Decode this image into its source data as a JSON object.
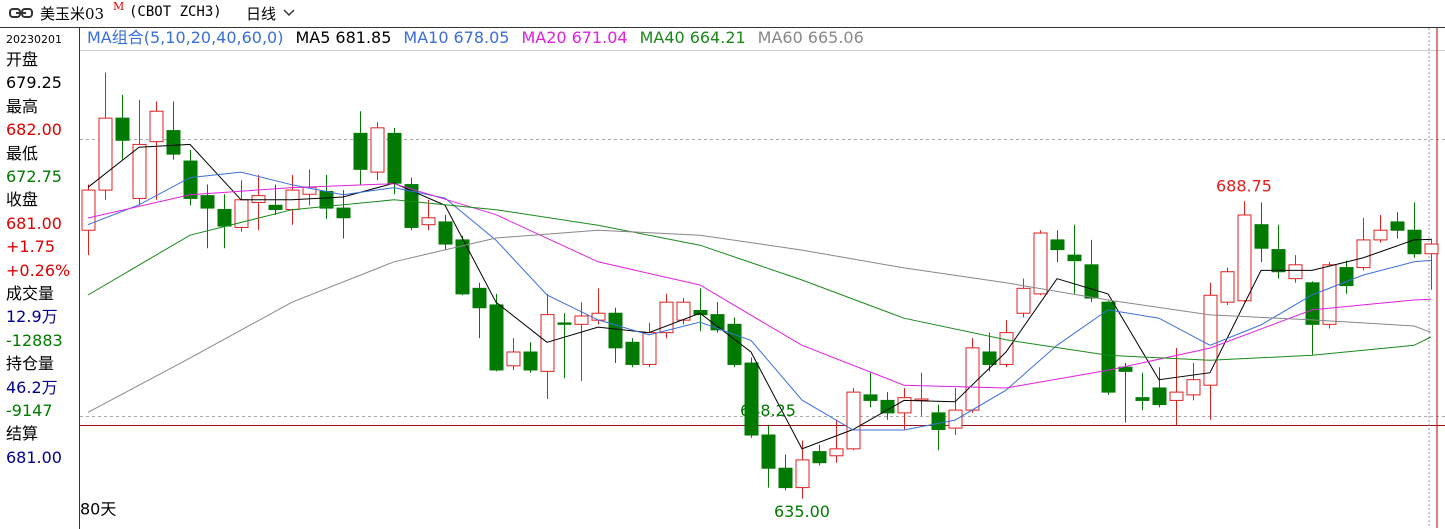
{
  "header": {
    "symbol": "美玉米03",
    "mark": "M",
    "code": "(CBOT ZCH3)",
    "period": "日线"
  },
  "info_panel": {
    "date": "20230201",
    "items": [
      {
        "text": "开盘",
        "color": "#000000"
      },
      {
        "text": "679.25",
        "color": "#000000"
      },
      {
        "text": "最高",
        "color": "#000000"
      },
      {
        "text": "682.00",
        "color": "#e00000"
      },
      {
        "text": "最低",
        "color": "#000000"
      },
      {
        "text": "672.75",
        "color": "#007a00"
      },
      {
        "text": "收盘",
        "color": "#000000"
      },
      {
        "text": "681.00",
        "color": "#e00000"
      },
      {
        "text": "+1.75",
        "color": "#e00000"
      },
      {
        "text": "+0.26%",
        "color": "#e00000"
      },
      {
        "text": "成交量",
        "color": "#000000"
      },
      {
        "text": "12.9万",
        "color": "#00008b"
      },
      {
        "text": "-12883",
        "color": "#007a00"
      },
      {
        "text": "持仓量",
        "color": "#000000"
      },
      {
        "text": "46.2万",
        "color": "#00008b"
      },
      {
        "text": "-9147",
        "color": "#007a00"
      },
      {
        "text": "结算",
        "color": "#000000"
      },
      {
        "text": "681.00",
        "color": "#00008b"
      }
    ]
  },
  "chart_data": {
    "type": "candlestick",
    "legend_title": "MA组合(5,10,20,40,60,0)",
    "period_label": "80天",
    "ylim": [
      629.7,
      715.7
    ],
    "gridlines": [
      650,
      700
    ],
    "reference_line": 648.25,
    "up_color": "#e02020",
    "down_color": "#007a00",
    "open": [
      683.5,
      690.75,
      703.75,
      689.25,
      699.5,
      701.5,
      696,
      689.75,
      687.25,
      684,
      688.5,
      688,
      687.25,
      690,
      690.5,
      687.5,
      701,
      694,
      701,
      691.75,
      684.5,
      685,
      681.75,
      673,
      670,
      659,
      661.5,
      658,
      666.75,
      666.5,
      667.25,
      668.5,
      663.25,
      659.25,
      665,
      667.25,
      669,
      668.25,
      666.5,
      659.5,
      646.5,
      640.5,
      637,
      643.5,
      642.75,
      644,
      653.75,
      652.75,
      650.5,
      652.75,
      650.5,
      647.75,
      651,
      661.5,
      659.25,
      668.5,
      672,
      681.75,
      679,
      677.25,
      670.5,
      658.75,
      653.25,
      655,
      652.75,
      653.75,
      655.5,
      670.5,
      670.75,
      684.5,
      680,
      674.75,
      674,
      666.5,
      676.75,
      676.75,
      681.75,
      685,
      683.5,
      679.25
    ],
    "high": [
      691.75,
      712,
      708,
      707,
      706.75,
      706.75,
      698,
      691.75,
      690,
      692.5,
      693.5,
      691.75,
      693.5,
      694.5,
      693.5,
      690.75,
      705,
      703,
      702,
      693,
      689,
      686.25,
      682.5,
      674,
      672,
      664,
      663.25,
      672,
      668.5,
      670.5,
      673,
      669.5,
      664,
      666.75,
      672,
      671.25,
      673,
      670.5,
      667.75,
      660.5,
      648.25,
      643,
      645.5,
      644.75,
      649.25,
      655,
      657.75,
      654.25,
      655,
      657.75,
      652,
      655,
      664,
      665,
      667.25,
      674.75,
      683.5,
      683.5,
      684.5,
      681.75,
      670.75,
      659.5,
      657.75,
      658.75,
      662.25,
      659.5,
      674,
      676.75,
      688.75,
      688.5,
      684.5,
      679,
      674.25,
      677.75,
      678,
      685.75,
      686.25,
      686.75,
      688.5,
      682
    ],
    "low": [
      679,
      689,
      696.25,
      688,
      689,
      696.25,
      688,
      680.25,
      680.25,
      683.25,
      683.5,
      686.25,
      684.5,
      688,
      685.5,
      682,
      691.75,
      692.5,
      690,
      683.5,
      683.5,
      680,
      671.75,
      664,
      658,
      658.25,
      657.75,
      653,
      656.75,
      656.25,
      666.5,
      659.5,
      658.75,
      658.75,
      664,
      666.5,
      665.25,
      665,
      658.75,
      646,
      637,
      636.5,
      635,
      641,
      641.5,
      643.75,
      651.5,
      649.25,
      647.5,
      650,
      643.75,
      646.5,
      650.5,
      658,
      658.75,
      667.75,
      671.75,
      677.75,
      672,
      670.5,
      653.75,
      648.75,
      651,
      651.5,
      648.25,
      652.75,
      649.25,
      670,
      670.5,
      677.75,
      674.75,
      674,
      661,
      665.75,
      672,
      676.25,
      681.25,
      682,
      678.5,
      672.75
    ],
    "close": [
      690.75,
      703.75,
      699.75,
      699,
      705,
      697.25,
      689.25,
      687.5,
      684.25,
      689,
      689.75,
      687.25,
      690.75,
      691.25,
      687.5,
      685.75,
      694.5,
      702,
      692,
      684,
      685.75,
      681,
      672,
      669.5,
      658.25,
      661.5,
      658.25,
      668.25,
      666.5,
      668,
      668.5,
      662.25,
      659.25,
      665,
      670.5,
      670.5,
      668.25,
      665.5,
      659.25,
      646.5,
      640.5,
      637,
      642,
      641.5,
      644,
      654.25,
      652.75,
      650.5,
      653.25,
      653,
      647.5,
      651,
      662.25,
      659.25,
      665,
      673,
      683,
      680,
      678,
      671.25,
      654.25,
      658,
      652.75,
      652,
      654.25,
      656.5,
      671.75,
      676,
      686.25,
      680.25,
      676,
      677.25,
      666.5,
      677.25,
      673.5,
      681.75,
      683.5,
      683.5,
      679.25,
      681
    ],
    "series": [
      {
        "name": "MA5",
        "latest": 681.85,
        "color": "#000000",
        "x": [
          0,
          3,
          6,
          9,
          12,
          15,
          18,
          21,
          24,
          27,
          30,
          33,
          36,
          39,
          42,
          45,
          48,
          51,
          54,
          57,
          60,
          63,
          66,
          69,
          72,
          75,
          78,
          79
        ],
        "values": [
          691.25,
          698.5,
          699,
          689,
          689,
          689.5,
          692,
          688,
          670.5,
          663.25,
          666,
          665,
          668.5,
          661.5,
          644,
          647.5,
          652.75,
          652.5,
          661.5,
          674.75,
          672,
          656.5,
          657.75,
          676.25,
          676.25,
          678.5,
          681.75,
          681.85
        ]
      },
      {
        "name": "MA10",
        "latest": 678.05,
        "color": "#3a6fd8",
        "x": [
          0,
          3,
          6,
          9,
          12,
          15,
          18,
          21,
          24,
          27,
          30,
          33,
          36,
          39,
          42,
          45,
          48,
          51,
          54,
          57,
          60,
          63,
          66,
          69,
          72,
          75,
          78,
          79
        ],
        "values": [
          684.5,
          688.1,
          693,
          694,
          691.7,
          689.9,
          691.2,
          689.3,
          681.7,
          671.8,
          667.3,
          664.6,
          666.9,
          663.6,
          652.8,
          647.4,
          647.4,
          649.2,
          654.6,
          662.7,
          669.1,
          667.6,
          662.7,
          666.4,
          671.8,
          675.4,
          677.8,
          678.05
        ]
      },
      {
        "name": "MA20",
        "latest": 671.04,
        "color": "#e020e0",
        "x": [
          0,
          6,
          12,
          18,
          24,
          30,
          36,
          42,
          48,
          54,
          60,
          66,
          72,
          78,
          79
        ],
        "values": [
          685.7,
          689.9,
          691.2,
          691.9,
          686.3,
          677.8,
          673.6,
          662.7,
          655.5,
          655,
          658.2,
          662.2,
          669.1,
          670.9,
          671.04
        ]
      },
      {
        "name": "MA40",
        "latest": 664.21,
        "color": "#1a8a1a",
        "x": [
          0,
          6,
          12,
          18,
          24,
          30,
          36,
          42,
          48,
          54,
          60,
          66,
          72,
          78,
          79
        ],
        "values": [
          671.8,
          682.6,
          687.2,
          689,
          687.2,
          684.4,
          680.8,
          674.5,
          667.6,
          663.7,
          660.9,
          660,
          660.9,
          662.7,
          664.21
        ]
      },
      {
        "name": "MA60",
        "latest": 665.06,
        "color": "#888888",
        "x": [
          0,
          6,
          12,
          18,
          24,
          30,
          36,
          42,
          48,
          54,
          60,
          66,
          72,
          78,
          79
        ],
        "values": [
          650.6,
          660.4,
          670.5,
          677.8,
          682.1,
          683.5,
          682.6,
          679.9,
          676.7,
          674,
          670.9,
          668.2,
          667.3,
          666.2,
          665.06
        ]
      }
    ],
    "annotations": [
      {
        "value": 688.75,
        "label": "688.75",
        "color": "#e02020"
      },
      {
        "value": 648.25,
        "label": "648.25",
        "color": "#007a00"
      },
      {
        "value": 635,
        "label": "635.00",
        "color": "#007a00"
      }
    ]
  }
}
